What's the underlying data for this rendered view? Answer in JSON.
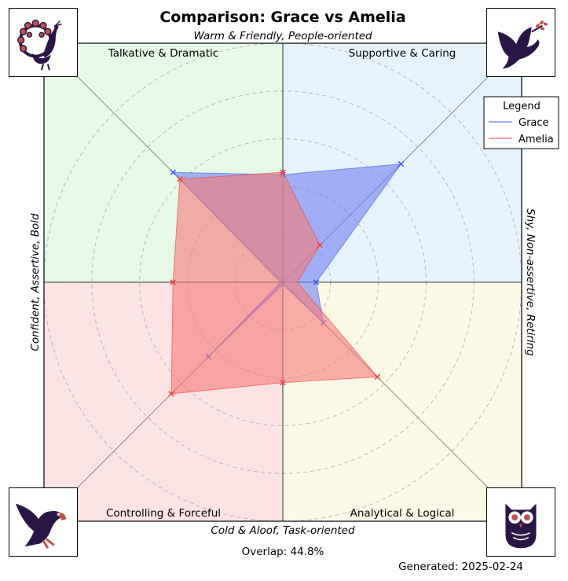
{
  "chart_data": {
    "type": "radar",
    "title": "Comparison: Grace vs Amelia",
    "axis_top": "Warm & Friendly, People-oriented",
    "axis_bottom": "Cold & Aloof, Task-oriented",
    "axis_left": "Confident, Assertive, Bold",
    "axis_right": "Shy, Non-assertive, Retiring",
    "quadrants": [
      {
        "label": "Talkative & Dramatic",
        "color": "#e6f8e6",
        "position": "top-left"
      },
      {
        "label": "Supportive & Caring",
        "color": "#e6f3fd",
        "position": "top-right"
      },
      {
        "label": "Controlling & Forceful",
        "color": "#fbe3e3",
        "position": "bottom-left"
      },
      {
        "label": "Analytical & Logical",
        "color": "#fbf9e6",
        "position": "bottom-right"
      }
    ],
    "axes_order": [
      "right",
      "top-right",
      "top",
      "top-left",
      "left",
      "bottom-left",
      "bottom",
      "bottom-right"
    ],
    "rmax": 5,
    "rings": [
      1,
      2,
      3,
      4,
      5
    ],
    "series": [
      {
        "name": "Grace",
        "color": "#3d5bf0",
        "fill": "#6f80f0",
        "values": [
          0.7,
          3.5,
          2.25,
          3.25,
          0.05,
          2.2,
          0.05,
          1.2
        ]
      },
      {
        "name": "Amelia",
        "color": "#f04040",
        "fill": "#f67a78",
        "values": [
          0.3,
          1.1,
          2.3,
          3.05,
          2.3,
          3.3,
          2.1,
          2.8
        ]
      }
    ],
    "legend": {
      "title": "Legend",
      "position": "top-right"
    },
    "overlap_label": "Overlap: 44.8%",
    "generated_label": "Generated: 2025-02-24"
  },
  "icons": {
    "top_left": "peacock-icon",
    "top_right": "dove-icon",
    "bottom_left": "eagle-icon",
    "bottom_right": "owl-icon"
  }
}
